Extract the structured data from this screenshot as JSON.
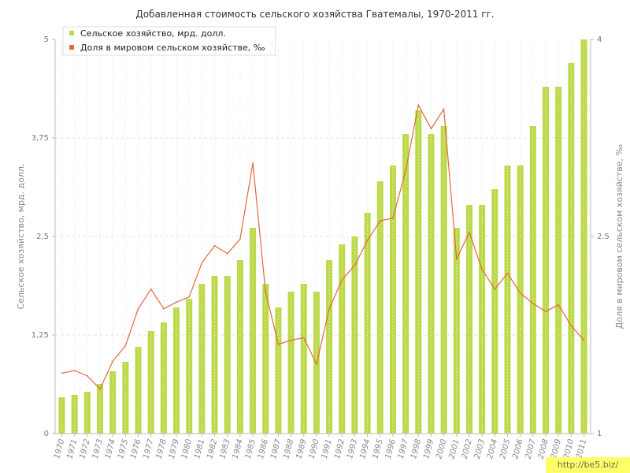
{
  "chart_data": {
    "type": "bar",
    "title": "Добавленная стоимость сельского хозяйства Гватемалы, 1970-2011 гг.",
    "ylabel": "Сельское хозяйство, мрд. долл.",
    "y2label": "Доля в мировом сельском хозяйстве, ‰",
    "ylim": [
      0,
      5
    ],
    "y2lim": [
      1,
      4
    ],
    "yticks": [
      "0",
      "1,25",
      "2,5",
      "3,75",
      "5"
    ],
    "y2ticks": [
      "1",
      "2.5",
      "4"
    ],
    "legend_position": "top-left",
    "grid": true,
    "categories": [
      "1970",
      "1971",
      "1972",
      "1973",
      "1974",
      "1975",
      "1976",
      "1977",
      "1978",
      "1979",
      "1980",
      "1981",
      "1982",
      "1983",
      "1984",
      "1985",
      "1986",
      "1987",
      "1988",
      "1989",
      "1990",
      "1991",
      "1992",
      "1993",
      "1994",
      "1995",
      "1996",
      "1997",
      "1998",
      "1999",
      "2000",
      "2001",
      "2002",
      "2003",
      "2004",
      "2005",
      "2006",
      "2007",
      "2008",
      "2009",
      "2010",
      "2011"
    ],
    "series": [
      {
        "name": "Сельское хозяйство, мрд. долл.",
        "type": "bar",
        "axis": "left",
        "color": "#bcd94a",
        "values": [
          0.46,
          0.49,
          0.53,
          0.63,
          0.79,
          0.91,
          1.1,
          1.3,
          1.41,
          1.6,
          1.71,
          1.9,
          2.0,
          2.0,
          2.2,
          2.61,
          1.9,
          1.6,
          1.8,
          1.9,
          1.8,
          2.2,
          2.4,
          2.5,
          2.8,
          3.2,
          3.4,
          3.8,
          4.1,
          3.8,
          3.9,
          2.61,
          2.9,
          2.9,
          3.1,
          3.4,
          3.4,
          3.9,
          4.4,
          4.4,
          4.7,
          5.0
        ]
      },
      {
        "name": "Доля в мировом сельском хозяйстве, ‰",
        "type": "line",
        "axis": "right",
        "color": "#e06a3a",
        "values": [
          1.46,
          1.48,
          1.44,
          1.34,
          1.55,
          1.67,
          1.95,
          2.1,
          1.95,
          2.0,
          2.04,
          2.3,
          2.43,
          2.37,
          2.48,
          3.06,
          2.08,
          1.68,
          1.71,
          1.73,
          1.53,
          1.95,
          2.17,
          2.28,
          2.47,
          2.62,
          2.64,
          3.0,
          3.5,
          3.32,
          3.47,
          2.33,
          2.53,
          2.25,
          2.1,
          2.22,
          2.07,
          1.99,
          1.93,
          1.98,
          1.82,
          1.71
        ]
      }
    ]
  },
  "watermark": "http://be5.biz/"
}
